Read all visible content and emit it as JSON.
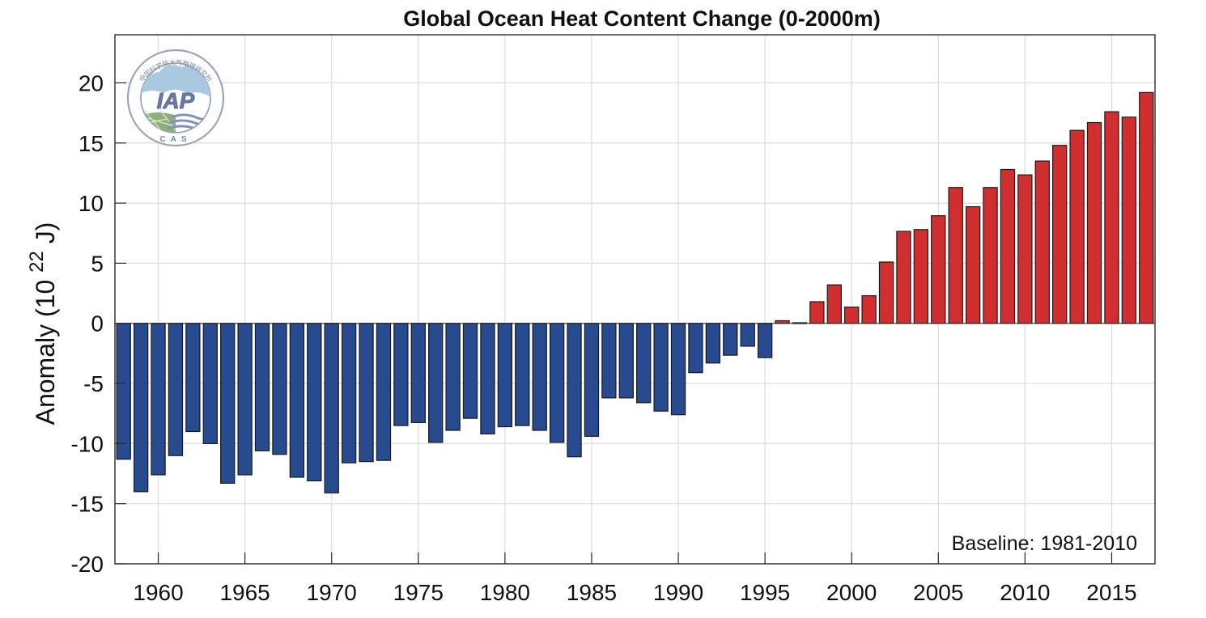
{
  "chart_data": {
    "type": "bar",
    "title": "Global Ocean Heat Content Change (0-2000m)",
    "xlabel": "",
    "ylabel": "Anomaly (10 22 J)",
    "ylabel_parts": {
      "prefix": "Anomaly (10 ",
      "superscript": "22",
      "suffix": " J)"
    },
    "annotation": "Baseline: 1981-2010",
    "xlim": [
      1957.5,
      2017.5
    ],
    "ylim": [
      -20,
      24
    ],
    "xticks": [
      1960,
      1965,
      1970,
      1975,
      1980,
      1985,
      1990,
      1995,
      2000,
      2005,
      2010,
      2015
    ],
    "yticks": [
      -20,
      -15,
      -10,
      -5,
      0,
      5,
      10,
      15,
      20
    ],
    "grid": true,
    "colors": {
      "positive": "#d12f2f",
      "negative": "#274b8e"
    },
    "categories": [
      1958,
      1959,
      1960,
      1961,
      1962,
      1963,
      1964,
      1965,
      1966,
      1967,
      1968,
      1969,
      1970,
      1971,
      1972,
      1973,
      1974,
      1975,
      1976,
      1977,
      1978,
      1979,
      1980,
      1981,
      1982,
      1983,
      1984,
      1985,
      1986,
      1987,
      1988,
      1989,
      1990,
      1991,
      1992,
      1993,
      1994,
      1995,
      1996,
      1997,
      1998,
      1999,
      2000,
      2001,
      2002,
      2003,
      2004,
      2005,
      2006,
      2007,
      2008,
      2009,
      2010,
      2011,
      2012,
      2013,
      2014,
      2015,
      2016,
      2017
    ],
    "values": [
      -11.3,
      -14.0,
      -12.6,
      -11.0,
      -9.0,
      -10.0,
      -13.3,
      -12.6,
      -10.6,
      -10.9,
      -12.8,
      -13.1,
      -14.1,
      -11.6,
      -11.5,
      -11.4,
      -8.5,
      -8.25,
      -9.9,
      -8.9,
      -7.9,
      -9.2,
      -8.6,
      -8.5,
      -8.9,
      -9.9,
      -11.1,
      -9.4,
      -6.2,
      -6.2,
      -6.6,
      -7.3,
      -7.6,
      -4.1,
      -3.3,
      -2.65,
      -1.9,
      -2.85,
      0.22,
      0.05,
      1.8,
      3.2,
      1.35,
      2.3,
      5.1,
      7.65,
      7.8,
      8.95,
      11.3,
      9.7,
      11.3,
      12.8,
      12.35,
      13.5,
      14.8,
      16.05,
      16.7,
      17.6,
      17.15,
      19.2
    ]
  },
  "logo": {
    "name": "IAP CAS logo",
    "center_text": "IAP",
    "bottom_text": "CAS",
    "ring_text": "中国科学院大气物理研究所"
  }
}
